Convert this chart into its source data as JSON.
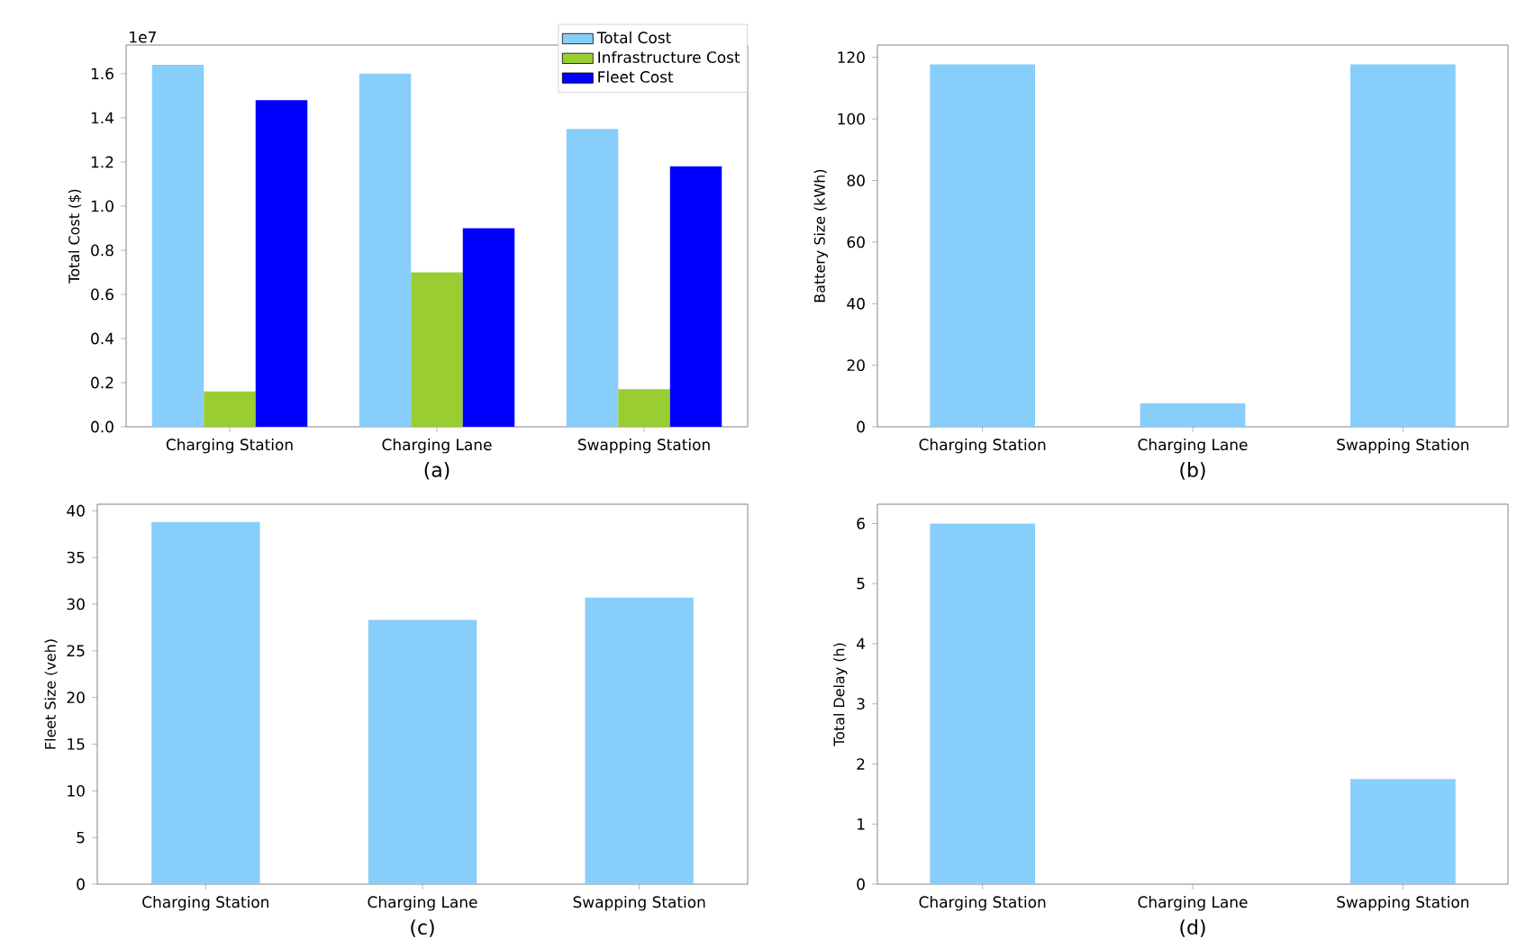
{
  "chart_data": [
    {
      "type": "bar",
      "categories": [
        "Charging Station",
        "Charging Lane",
        "Swapping Station"
      ],
      "xlabel": "(a)",
      "ylabel": "Total Cost ($)",
      "ylim": [
        0,
        1.73
      ],
      "yticks": [
        {
          "value": 0,
          "label": "0.0"
        },
        0.2,
        0.4,
        0.6,
        0.8,
        {
          "value": 1,
          "label": "1.0"
        },
        1.2,
        1.4,
        1.6
      ],
      "annotations": [
        "1e7"
      ],
      "legend": "top right",
      "series": [
        {
          "name": "Total Cost",
          "color": "#87cefa",
          "values": [
            1.64,
            1.6,
            1.35
          ]
        },
        {
          "name": "Infrastructure Cost",
          "color": "#9acd32",
          "values": [
            0.16,
            0.7,
            0.17
          ]
        },
        {
          "name": "Fleet Cost",
          "color": "#0000ff",
          "values": [
            1.48,
            0.9,
            1.18
          ]
        }
      ]
    },
    {
      "type": "bar",
      "categories": [
        "Charging Station",
        "Charging Lane",
        "Swapping Station"
      ],
      "xlabel": "(b)",
      "ylabel": "Battery Size (kWh)",
      "ylim": [
        0,
        124
      ],
      "yticks": [
        0,
        20,
        40,
        60,
        80,
        100,
        120
      ],
      "color": "#87cefa",
      "values": [
        117.7,
        7.6,
        117.7
      ]
    },
    {
      "type": "bar",
      "categories": [
        "Charging Station",
        "Charging Lane",
        "Swapping Station"
      ],
      "xlabel": "(c)",
      "ylabel": "Fleet Size (veh)",
      "ylim": [
        0,
        40.7
      ],
      "yticks": [
        0,
        5,
        10,
        15,
        20,
        25,
        30,
        35,
        40
      ],
      "color": "#87cefa",
      "values": [
        38.8,
        28.3,
        30.7
      ]
    },
    {
      "type": "bar",
      "categories": [
        "Charging Station",
        "Charging Lane",
        "Swapping Station"
      ],
      "xlabel": "(d)",
      "ylabel": "Total Delay (h)",
      "ylim": [
        0,
        6.32
      ],
      "yticks": [
        0,
        1,
        2,
        3,
        4,
        5,
        6
      ],
      "color": "#87cefa",
      "values": [
        6.0,
        0,
        1.75
      ]
    }
  ]
}
